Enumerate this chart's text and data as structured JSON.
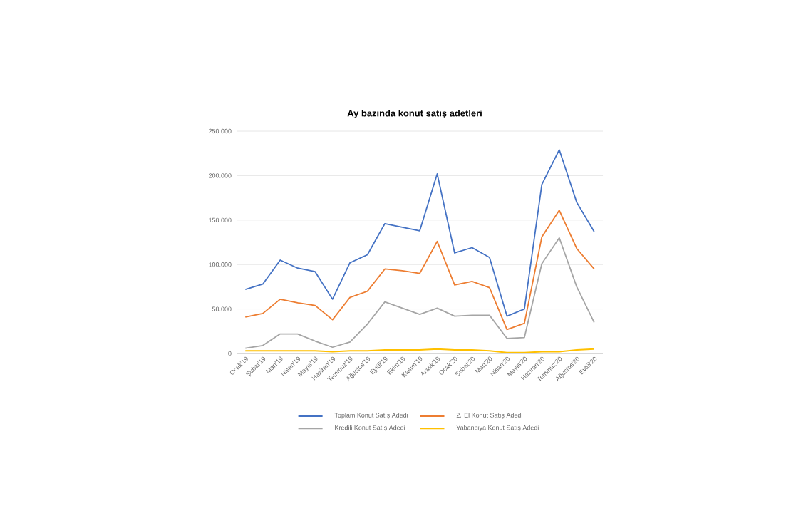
{
  "chart_data": {
    "type": "line",
    "title": "Ay bazında konut satış adetleri",
    "categories": [
      "Ocak'19",
      "Şubat'19",
      "Mart'19",
      "Nisan'19",
      "Mayıs'19",
      "Haziran'19",
      "Temmuz'19",
      "Ağustos'19",
      "Eylül'19",
      "Ekim'19",
      "Kasım'19",
      "Aralık'19",
      "Ocak'20",
      "Şubat'20",
      "Mart'20",
      "Nisan'20",
      "Mayıs'20",
      "Haziran'20",
      "Temmuz'20",
      "Ağustos'20",
      "Eylül'20"
    ],
    "series": [
      {
        "name": "Toplam Konut Satış Adedi",
        "color": "#4472c4",
        "values": [
          72000,
          78000,
          105000,
          96000,
          92000,
          61000,
          102000,
          111000,
          146000,
          142000,
          138000,
          202000,
          113000,
          119000,
          108000,
          42000,
          50000,
          190000,
          229000,
          170000,
          137000
        ]
      },
      {
        "name": "2. El Konut Satış Adedi",
        "color": "#ed7d31",
        "values": [
          41000,
          45000,
          61000,
          57000,
          54000,
          38000,
          63000,
          70000,
          95000,
          93000,
          90000,
          126000,
          77000,
          81000,
          74000,
          27000,
          34000,
          131000,
          161000,
          118000,
          95000
        ]
      },
      {
        "name": "Kredili Konut Satış Adedi",
        "color": "#a5a5a5",
        "values": [
          6000,
          9000,
          22000,
          22000,
          14000,
          7000,
          13000,
          33000,
          58000,
          51000,
          44000,
          51000,
          42000,
          43000,
          43000,
          17000,
          18000,
          101000,
          130000,
          75000,
          35000
        ]
      },
      {
        "name": "Yabancıya Konut Satış Adedi",
        "color": "#ffc000",
        "values": [
          3000,
          3000,
          3000,
          3000,
          3000,
          2000,
          3000,
          3000,
          4000,
          4000,
          4000,
          5000,
          4000,
          4000,
          3000,
          1000,
          1000,
          2000,
          2000,
          4000,
          5000
        ]
      }
    ],
    "ylim": [
      0,
      250000
    ],
    "yticks": [
      {
        "value": 0,
        "label": "0"
      },
      {
        "value": 50000,
        "label": "50.000"
      },
      {
        "value": 100000,
        "label": "100.000"
      },
      {
        "value": 150000,
        "label": "150.000"
      },
      {
        "value": 200000,
        "label": "200.000"
      },
      {
        "value": 250000,
        "label": "250.000"
      }
    ],
    "grid": "y",
    "legend": "bottom",
    "marker": "none",
    "line_style": "solid"
  }
}
